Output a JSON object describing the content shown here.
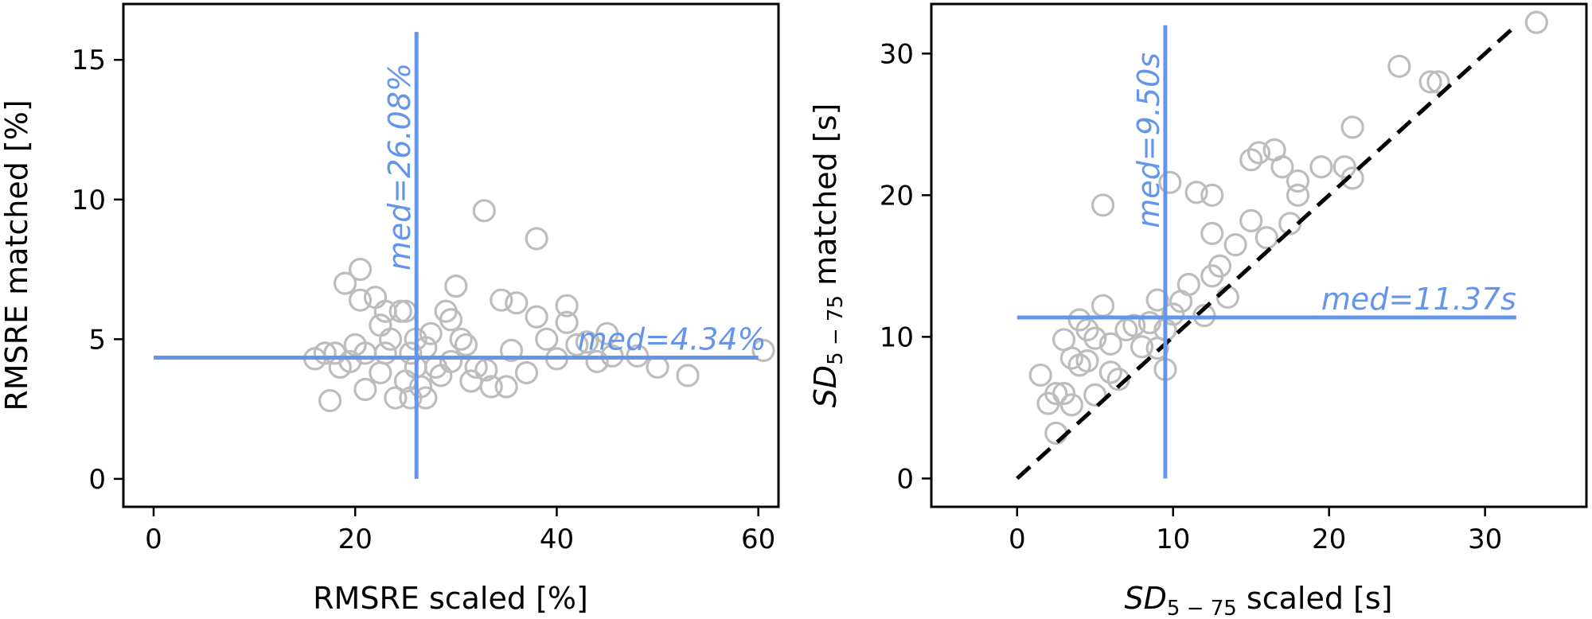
{
  "colors": {
    "marker": "#bdbdbd",
    "median": "#6495ed",
    "identity": "#000000",
    "frame": "#000000"
  },
  "chart_data": [
    {
      "type": "scatter",
      "xlabel": "RMSRE scaled [%]",
      "ylabel": "RMSRE matched [%]",
      "xlim": [
        -3,
        62
      ],
      "ylim": [
        -1,
        17
      ],
      "xticks": [
        0,
        20,
        40,
        60
      ],
      "xtick_labels": [
        "0",
        "20",
        "40",
        "60"
      ],
      "yticks": [
        0,
        5,
        10,
        15
      ],
      "ytick_labels": [
        "0",
        "5",
        "10",
        "15"
      ],
      "grid": false,
      "medians": {
        "x": {
          "value": 26.08,
          "label": "med=26.08%",
          "range": [
            0,
            16
          ]
        },
        "y": {
          "value": 4.34,
          "label": "med=4.34%",
          "range": [
            0,
            60
          ]
        }
      },
      "points": [
        {
          "x": 16,
          "y": 4.3
        },
        {
          "x": 17,
          "y": 4.5
        },
        {
          "x": 17.5,
          "y": 2.8
        },
        {
          "x": 18,
          "y": 4.5
        },
        {
          "x": 18.5,
          "y": 4
        },
        {
          "x": 19,
          "y": 7
        },
        {
          "x": 19.5,
          "y": 4.2
        },
        {
          "x": 20,
          "y": 4.8
        },
        {
          "x": 20.5,
          "y": 6.4
        },
        {
          "x": 20.5,
          "y": 7.5
        },
        {
          "x": 21,
          "y": 4.5
        },
        {
          "x": 21,
          "y": 3.2
        },
        {
          "x": 22,
          "y": 6.5
        },
        {
          "x": 22.5,
          "y": 5.5
        },
        {
          "x": 22.5,
          "y": 3.8
        },
        {
          "x": 23,
          "y": 4.5
        },
        {
          "x": 23,
          "y": 6
        },
        {
          "x": 23.5,
          "y": 5
        },
        {
          "x": 24,
          "y": 2.9
        },
        {
          "x": 24.5,
          "y": 6
        },
        {
          "x": 25,
          "y": 3.5
        },
        {
          "x": 25,
          "y": 6
        },
        {
          "x": 25.5,
          "y": 4.5
        },
        {
          "x": 25.5,
          "y": 2.9
        },
        {
          "x": 26,
          "y": 5
        },
        {
          "x": 26,
          "y": 4
        },
        {
          "x": 26.5,
          "y": 3.3
        },
        {
          "x": 27,
          "y": 2.9
        },
        {
          "x": 27,
          "y": 4.7
        },
        {
          "x": 27.5,
          "y": 5.2
        },
        {
          "x": 28,
          "y": 4
        },
        {
          "x": 28.5,
          "y": 3.7
        },
        {
          "x": 29,
          "y": 6
        },
        {
          "x": 29.5,
          "y": 5.7
        },
        {
          "x": 29.5,
          "y": 4.2
        },
        {
          "x": 30,
          "y": 6.9
        },
        {
          "x": 30.5,
          "y": 5
        },
        {
          "x": 31,
          "y": 4.8
        },
        {
          "x": 31.5,
          "y": 3.5
        },
        {
          "x": 32,
          "y": 4
        },
        {
          "x": 32.8,
          "y": 9.6
        },
        {
          "x": 33,
          "y": 3.9
        },
        {
          "x": 33.5,
          "y": 3.3
        },
        {
          "x": 34.5,
          "y": 6.4
        },
        {
          "x": 35,
          "y": 3.3
        },
        {
          "x": 35.5,
          "y": 4.6
        },
        {
          "x": 36,
          "y": 6.3
        },
        {
          "x": 37,
          "y": 3.8
        },
        {
          "x": 38,
          "y": 8.6
        },
        {
          "x": 38,
          "y": 5.8
        },
        {
          "x": 39,
          "y": 5
        },
        {
          "x": 40,
          "y": 4.3
        },
        {
          "x": 41,
          "y": 5.6
        },
        {
          "x": 41,
          "y": 6.2
        },
        {
          "x": 42,
          "y": 4.8
        },
        {
          "x": 43,
          "y": 4.9
        },
        {
          "x": 44,
          "y": 4.2
        },
        {
          "x": 45,
          "y": 5.2
        },
        {
          "x": 45.5,
          "y": 4.4
        },
        {
          "x": 48,
          "y": 4.4
        },
        {
          "x": 50,
          "y": 4
        },
        {
          "x": 53,
          "y": 3.7
        },
        {
          "x": 60.5,
          "y": 4.6
        }
      ]
    },
    {
      "type": "scatter",
      "xlabel_base": "SD",
      "xlabel_sub": "5 − 75",
      "xlabel_rest": " scaled [s]",
      "ylabel_base": "SD",
      "ylabel_sub": "5 − 75",
      "ylabel_rest": " matched [s]",
      "xlim": [
        -5.5,
        36.5
      ],
      "ylim": [
        -2,
        33.5
      ],
      "xticks": [
        0,
        10,
        20,
        30
      ],
      "xtick_labels": [
        "0",
        "10",
        "20",
        "30"
      ],
      "yticks": [
        0,
        10,
        20,
        30
      ],
      "ytick_labels": [
        "0",
        "10",
        "20",
        "30"
      ],
      "grid": false,
      "identity_line": {
        "from": [
          0,
          0
        ],
        "to": [
          32,
          32
        ]
      },
      "medians": {
        "x": {
          "value": 9.5,
          "label": "med=9.50s",
          "range": [
            0,
            32
          ]
        },
        "y": {
          "value": 11.37,
          "label": "med=11.37s",
          "range": [
            0,
            32
          ]
        }
      },
      "points": [
        {
          "x": 1.5,
          "y": 7.3
        },
        {
          "x": 2,
          "y": 5.3
        },
        {
          "x": 2.5,
          "y": 3.2
        },
        {
          "x": 2.5,
          "y": 6
        },
        {
          "x": 3,
          "y": 9.8
        },
        {
          "x": 3,
          "y": 6
        },
        {
          "x": 3.5,
          "y": 8.5
        },
        {
          "x": 3.5,
          "y": 5.2
        },
        {
          "x": 4,
          "y": 11.2
        },
        {
          "x": 4,
          "y": 8
        },
        {
          "x": 4.5,
          "y": 10.5
        },
        {
          "x": 4.5,
          "y": 8.3
        },
        {
          "x": 5,
          "y": 5.9
        },
        {
          "x": 5,
          "y": 9.9
        },
        {
          "x": 5.5,
          "y": 12.2
        },
        {
          "x": 5.5,
          "y": 19.3
        },
        {
          "x": 6,
          "y": 9.5
        },
        {
          "x": 6,
          "y": 7.5
        },
        {
          "x": 6.5,
          "y": 7
        },
        {
          "x": 7,
          "y": 10.5
        },
        {
          "x": 7.5,
          "y": 10.8
        },
        {
          "x": 8,
          "y": 9.3
        },
        {
          "x": 8.5,
          "y": 11
        },
        {
          "x": 9,
          "y": 12.6
        },
        {
          "x": 9,
          "y": 9.2
        },
        {
          "x": 9.5,
          "y": 7.7
        },
        {
          "x": 9.5,
          "y": 10.5
        },
        {
          "x": 9.8,
          "y": 20.9
        },
        {
          "x": 10,
          "y": 11.6
        },
        {
          "x": 10.5,
          "y": 12.5
        },
        {
          "x": 11,
          "y": 13.7
        },
        {
          "x": 11.5,
          "y": 20.2
        },
        {
          "x": 12,
          "y": 11.5
        },
        {
          "x": 12.5,
          "y": 14.3
        },
        {
          "x": 12.5,
          "y": 17.3
        },
        {
          "x": 12.5,
          "y": 20
        },
        {
          "x": 13,
          "y": 15
        },
        {
          "x": 13.5,
          "y": 12.8
        },
        {
          "x": 14,
          "y": 16.5
        },
        {
          "x": 15,
          "y": 18.2
        },
        {
          "x": 15,
          "y": 22.5
        },
        {
          "x": 15.5,
          "y": 23
        },
        {
          "x": 16,
          "y": 17
        },
        {
          "x": 16.5,
          "y": 23.2
        },
        {
          "x": 17,
          "y": 22
        },
        {
          "x": 17.5,
          "y": 18
        },
        {
          "x": 18,
          "y": 21
        },
        {
          "x": 18,
          "y": 20
        },
        {
          "x": 19.5,
          "y": 22
        },
        {
          "x": 21,
          "y": 22
        },
        {
          "x": 21.5,
          "y": 24.8
        },
        {
          "x": 21.5,
          "y": 21.2
        },
        {
          "x": 24.5,
          "y": 29.1
        },
        {
          "x": 26.5,
          "y": 28
        },
        {
          "x": 27,
          "y": 28
        },
        {
          "x": 33.3,
          "y": 32.2
        }
      ]
    }
  ]
}
